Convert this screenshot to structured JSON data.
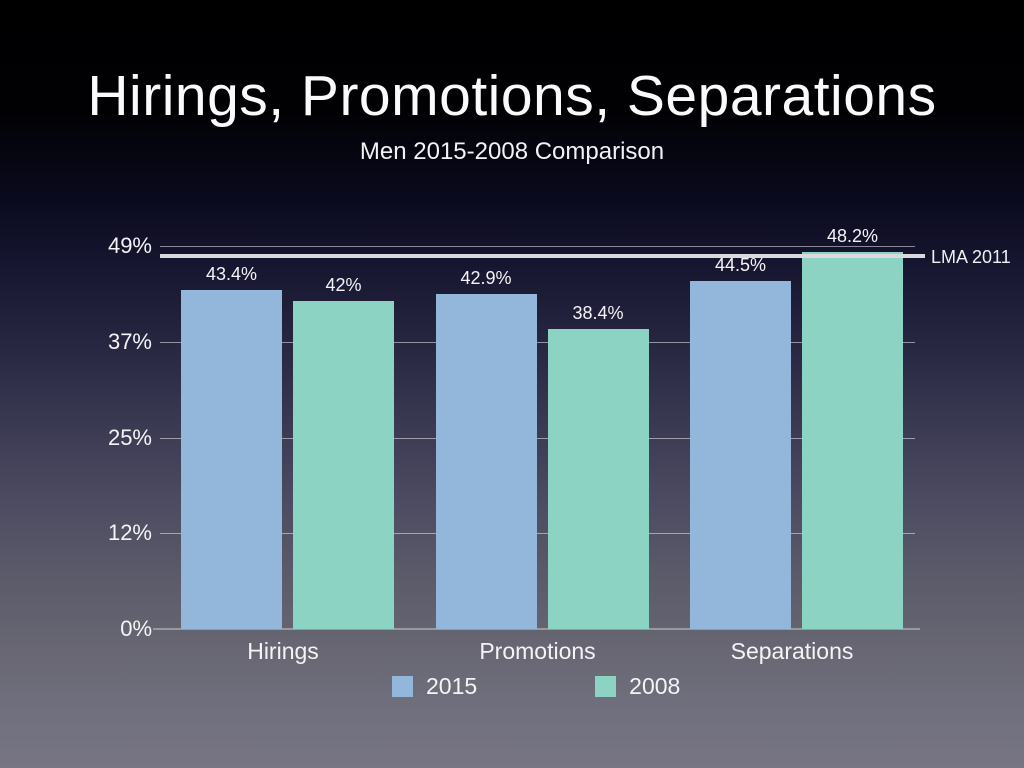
{
  "slide": {
    "title": "Hirings, Promotions, Separations",
    "subtitle": "Men 2015-2008 Comparison"
  },
  "chart_data": {
    "type": "bar",
    "title": "Hirings, Promotions, Separations",
    "subtitle": "Men 2015-2008 Comparison",
    "categories": [
      "Hirings",
      "Promotions",
      "Separations"
    ],
    "series": [
      {
        "name": "2015",
        "color": "#92b7db",
        "values": [
          43.4,
          42.9,
          44.5
        ],
        "labels": [
          "43.4%",
          "42.9%",
          "44.5%"
        ]
      },
      {
        "name": "2008",
        "color": "#8dd3c3",
        "values": [
          42,
          38.4,
          48.2
        ],
        "labels": [
          "42%",
          "38.4%",
          "48.2%"
        ]
      }
    ],
    "ylim": [
      0,
      49
    ],
    "yticks": [
      {
        "label": "0%",
        "value": 0
      },
      {
        "label": "12%",
        "value": 12.25
      },
      {
        "label": "25%",
        "value": 24.5
      },
      {
        "label": "37%",
        "value": 36.75
      },
      {
        "label": "49%",
        "value": 49
      }
    ],
    "reference_line": {
      "label": "LMA 2011",
      "value": 47.7,
      "color": "#d9d9de"
    },
    "grid": true,
    "legend_position": "bottom"
  }
}
